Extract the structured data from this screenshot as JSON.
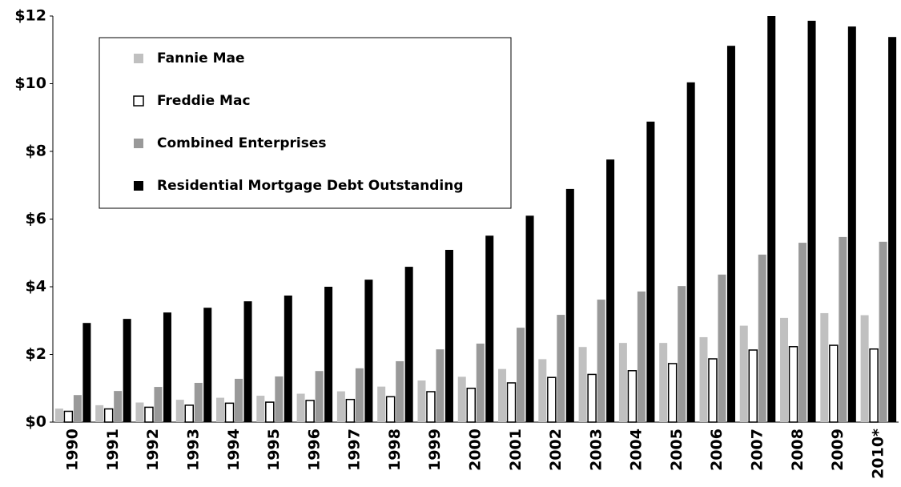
{
  "chart_data": {
    "type": "bar",
    "categories": [
      "1990",
      "1991",
      "1992",
      "1993",
      "1994",
      "1995",
      "1996",
      "1997",
      "1998",
      "1999",
      "2000",
      "2001",
      "2002",
      "2003",
      "2004",
      "2005",
      "2006",
      "2007",
      "2008",
      "2009",
      "2010*"
    ],
    "series": [
      {
        "name": "Fannie Mae",
        "color": "#c0c0c0",
        "values": [
          0.4,
          0.5,
          0.58,
          0.66,
          0.72,
          0.78,
          0.84,
          0.91,
          1.05,
          1.23,
          1.34,
          1.57,
          1.86,
          2.22,
          2.34,
          2.34,
          2.51,
          2.85,
          3.08,
          3.22,
          3.16
        ]
      },
      {
        "name": "Freddie Mac",
        "color": "#ffffff",
        "values": [
          0.32,
          0.39,
          0.44,
          0.5,
          0.56,
          0.59,
          0.64,
          0.67,
          0.75,
          0.9,
          1.0,
          1.16,
          1.32,
          1.41,
          1.52,
          1.73,
          1.87,
          2.13,
          2.23,
          2.27,
          2.16
        ]
      },
      {
        "name": "Combined Enterprises",
        "color": "#999999",
        "values": [
          0.8,
          0.92,
          1.04,
          1.16,
          1.28,
          1.35,
          1.51,
          1.59,
          1.8,
          2.15,
          2.32,
          2.79,
          3.17,
          3.62,
          3.86,
          4.02,
          4.36,
          4.95,
          5.3,
          5.47,
          5.33
        ]
      },
      {
        "name": "Residential Mortgage Debt Outstanding",
        "color": "#000000",
        "values": [
          2.93,
          3.05,
          3.24,
          3.38,
          3.57,
          3.74,
          4.0,
          4.21,
          4.59,
          5.09,
          5.51,
          6.1,
          6.89,
          7.76,
          8.88,
          10.04,
          11.12,
          12.0,
          11.86,
          11.69,
          11.38
        ]
      }
    ],
    "ylim": [
      0,
      12
    ],
    "yticks": [
      {
        "value": 0,
        "label": "$0"
      },
      {
        "value": 2,
        "label": "$2"
      },
      {
        "value": 4,
        "label": "$4"
      },
      {
        "value": 6,
        "label": "$6"
      },
      {
        "value": 8,
        "label": "$8"
      },
      {
        "value": 10,
        "label": "$10"
      },
      {
        "value": 12,
        "label": "$12"
      }
    ],
    "grid": false,
    "legend": "upper left"
  }
}
